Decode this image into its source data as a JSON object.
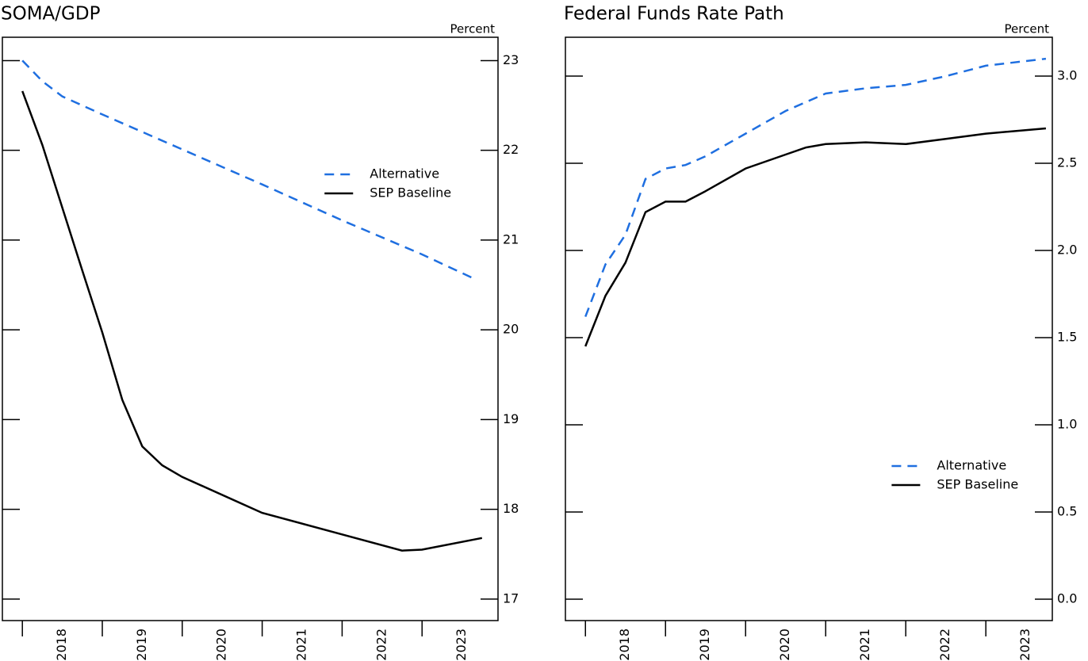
{
  "chart_data": [
    {
      "type": "line",
      "title": "SOMA/GDP",
      "y_label": "Percent",
      "xlim": [
        2017.75,
        2023.95
      ],
      "ylim": [
        16.76,
        23.26
      ],
      "xtick_marks": [
        2018,
        2019,
        2020,
        2021,
        2022,
        2023
      ],
      "xticks": [
        {
          "value": 2018.5,
          "label": "2018"
        },
        {
          "value": 2019.5,
          "label": "2019"
        },
        {
          "value": 2020.5,
          "label": "2020"
        },
        {
          "value": 2021.5,
          "label": "2021"
        },
        {
          "value": 2022.5,
          "label": "2022"
        },
        {
          "value": 2023.5,
          "label": "2023"
        }
      ],
      "yticks": [
        17,
        18,
        19,
        20,
        21,
        22,
        23
      ],
      "legend_position": "center right",
      "series": [
        {
          "name": "Alternative",
          "color": "#1f6fe0",
          "line_style": "dashed",
          "x": [
            2018,
            2018.25,
            2018.5,
            2019,
            2020,
            2021,
            2022,
            2023,
            2023.65
          ],
          "values": [
            23.0,
            22.77,
            22.6,
            22.4,
            22.01,
            21.62,
            21.22,
            20.84,
            20.57
          ]
        },
        {
          "name": "SEP Baseline",
          "color": "#000000",
          "line_style": "solid",
          "x": [
            2018,
            2018.25,
            2018.75,
            2019,
            2019.25,
            2019.5,
            2019.75,
            2020,
            2021,
            2022,
            2022.75,
            2023,
            2023.75
          ],
          "values": [
            22.66,
            22.06,
            20.66,
            19.97,
            19.22,
            18.7,
            18.49,
            18.36,
            17.96,
            17.72,
            17.54,
            17.55,
            17.68
          ]
        }
      ]
    },
    {
      "type": "line",
      "title": "Federal Funds Rate Path",
      "y_label": "Percent",
      "xlim": [
        2017.75,
        2023.83
      ],
      "ylim": [
        -0.123,
        3.223
      ],
      "xtick_marks": [
        2018,
        2019,
        2020,
        2021,
        2022,
        2023
      ],
      "xticks": [
        {
          "value": 2018.5,
          "label": "2018"
        },
        {
          "value": 2019.5,
          "label": "2019"
        },
        {
          "value": 2020.5,
          "label": "2020"
        },
        {
          "value": 2021.5,
          "label": "2021"
        },
        {
          "value": 2022.5,
          "label": "2022"
        },
        {
          "value": 2023.5,
          "label": "2023"
        }
      ],
      "yticks": [
        {
          "value": 0,
          "label": "0.0"
        },
        0.5,
        {
          "value": 1,
          "label": "1.0"
        },
        1.5,
        {
          "value": 2,
          "label": "2.0"
        },
        2.5,
        {
          "value": 3,
          "label": "3.0"
        }
      ],
      "legend_position": "lower right",
      "series": [
        {
          "name": "Alternative",
          "color": "#1f6fe0",
          "line_style": "dashed",
          "x": [
            2018,
            2018.25,
            2018.5,
            2018.75,
            2019,
            2019.25,
            2019.5,
            2020,
            2020.5,
            2021,
            2021.5,
            2022,
            2022.5,
            2023,
            2023.75
          ],
          "values": [
            1.62,
            1.92,
            2.09,
            2.41,
            2.47,
            2.49,
            2.54,
            2.67,
            2.8,
            2.9,
            2.93,
            2.95,
            3.0,
            3.06,
            3.1
          ]
        },
        {
          "name": "SEP Baseline",
          "color": "#000000",
          "line_style": "solid",
          "x": [
            2018,
            2018.25,
            2018.5,
            2018.75,
            2019,
            2019.25,
            2019.5,
            2020,
            2020.5,
            2020.75,
            2021,
            2021.5,
            2022,
            2022.5,
            2023,
            2023.75
          ],
          "values": [
            1.45,
            1.74,
            1.93,
            2.22,
            2.28,
            2.28,
            2.34,
            2.47,
            2.55,
            2.59,
            2.61,
            2.62,
            2.61,
            2.64,
            2.67,
            2.7
          ]
        }
      ]
    }
  ]
}
